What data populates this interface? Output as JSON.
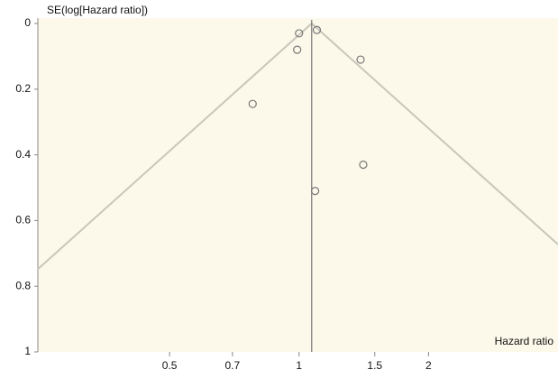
{
  "chart_data": {
    "type": "funnel",
    "y_label": "SE(log[Hazard ratio])",
    "x_label": "Hazard ratio",
    "x_scale": "log",
    "y_inverted": true,
    "xlim": [
      0.247,
      4.0
    ],
    "ylim": [
      0,
      1
    ],
    "xticks": [
      0.5,
      0.7,
      1,
      1.5,
      2
    ],
    "yticks": [
      0,
      0.2,
      0.4,
      0.6,
      0.8,
      1
    ],
    "reference_line": 1.07,
    "confidence_z": 1.96,
    "background": "#fcf9ea",
    "color": "#777777",
    "x": [
      1.0,
      1.1,
      0.99,
      1.39,
      0.78,
      1.41,
      1.09
    ],
    "values": [
      0.03,
      0.02,
      0.08,
      0.11,
      0.245,
      0.43,
      0.51
    ]
  }
}
